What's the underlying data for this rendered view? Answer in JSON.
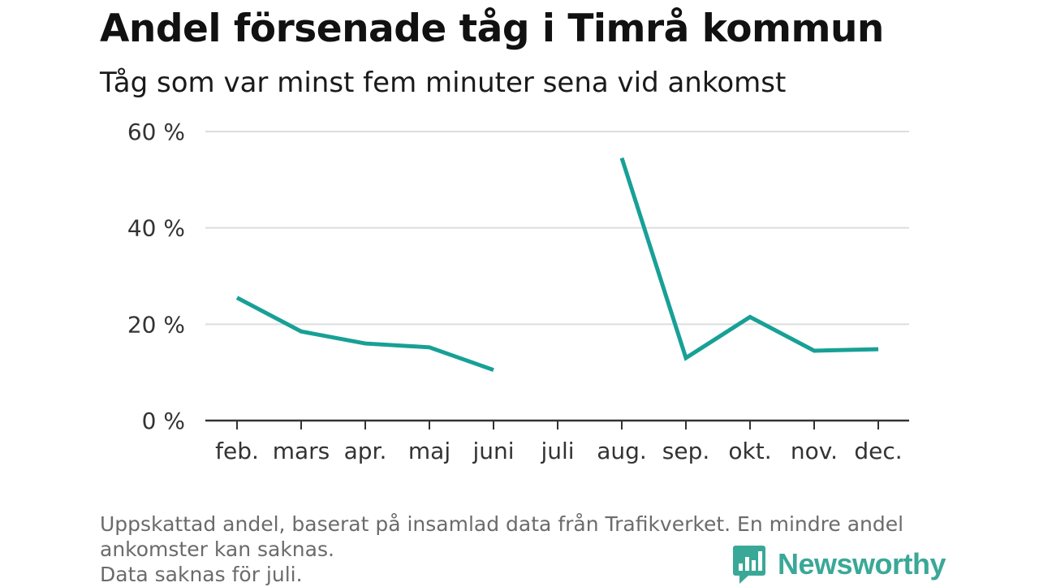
{
  "title": "Andel försenade tåg i Timrå kommun",
  "subtitle": "Tåg som var minst fem minuter sena vid ankomst",
  "chart_data": {
    "type": "line",
    "categories": [
      "feb.",
      "mars",
      "apr.",
      "maj",
      "juni",
      "juli",
      "aug.",
      "sep.",
      "okt.",
      "nov.",
      "dec."
    ],
    "series": [
      {
        "values": [
          25.5,
          18.5,
          16.0,
          15.2,
          10.5,
          null,
          54.5,
          13.0,
          21.5,
          14.5,
          14.8
        ]
      }
    ],
    "y_ticks": [
      0,
      20,
      40,
      60
    ],
    "y_tick_suffix": " %",
    "ylim": [
      0,
      60
    ],
    "grid": true,
    "line_color": "#18a096"
  },
  "footnote": {
    "line1": "Uppskattad andel, baserat på insamlad data från Trafikverket. En mindre andel",
    "line2": "ankomster kan saknas.",
    "line3": "Data saknas för juli."
  },
  "brand": {
    "name": "Newsworthy",
    "icon": "bar-chart-logo-icon",
    "color": "#3aa897"
  }
}
